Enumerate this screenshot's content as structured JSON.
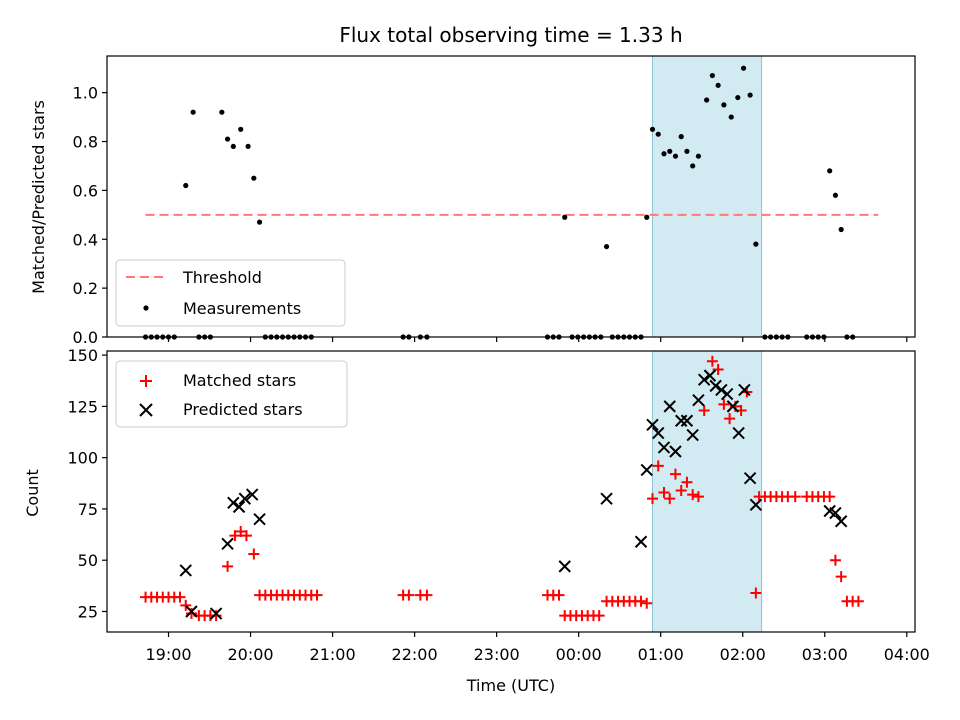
{
  "chart_data": {
    "type": "scatter",
    "title": "Flux total observing time = 1.33 h",
    "xlabel": "Time (UTC)",
    "x_unit": "hours since 00:00 UTC",
    "xlim": [
      -5.75,
      4.1
    ],
    "xticks": [
      {
        "v": -5,
        "label": "19:00"
      },
      {
        "v": -4,
        "label": "20:00"
      },
      {
        "v": -3,
        "label": "21:00"
      },
      {
        "v": -2,
        "label": "22:00"
      },
      {
        "v": -1,
        "label": "23:00"
      },
      {
        "v": 0,
        "label": "00:00"
      },
      {
        "v": 1,
        "label": "01:00"
      },
      {
        "v": 2,
        "label": "02:00"
      },
      {
        "v": 3,
        "label": "03:00"
      },
      {
        "v": 4,
        "label": "04:00"
      }
    ],
    "highlight_span": [
      0.9,
      2.23
    ],
    "top": {
      "ylabel": "Matched/Predicted stars",
      "ylim": [
        0,
        1.15
      ],
      "yticks": [
        "0.0",
        "0.2",
        "0.4",
        "0.6",
        "0.8",
        "1.0"
      ],
      "threshold": {
        "label": "Threshold",
        "value": 0.5,
        "x_range": [
          -5.28,
          3.65
        ]
      },
      "measurements_label": "Measurements",
      "measurements": [
        [
          -5.28,
          0
        ],
        [
          -5.21,
          0
        ],
        [
          -5.14,
          0
        ],
        [
          -5.07,
          0
        ],
        [
          -5.0,
          0
        ],
        [
          -4.93,
          0
        ],
        [
          -4.79,
          0.62
        ],
        [
          -4.7,
          0.92
        ],
        [
          -4.63,
          0
        ],
        [
          -4.56,
          0
        ],
        [
          -4.49,
          0
        ],
        [
          -4.35,
          0.92
        ],
        [
          -4.28,
          0.81
        ],
        [
          -4.21,
          0.78
        ],
        [
          -4.12,
          0.85
        ],
        [
          -4.03,
          0.78
        ],
        [
          -3.96,
          0.65
        ],
        [
          -3.89,
          0.47
        ],
        [
          -3.82,
          0
        ],
        [
          -3.75,
          0
        ],
        [
          -3.68,
          0
        ],
        [
          -3.61,
          0
        ],
        [
          -3.54,
          0
        ],
        [
          -3.47,
          0
        ],
        [
          -3.4,
          0
        ],
        [
          -3.33,
          0
        ],
        [
          -3.26,
          0
        ],
        [
          -2.14,
          0
        ],
        [
          -2.07,
          0
        ],
        [
          -1.93,
          0
        ],
        [
          -1.85,
          0
        ],
        [
          -0.38,
          0
        ],
        [
          -0.31,
          0
        ],
        [
          -0.24,
          0
        ],
        [
          -0.17,
          0.49
        ],
        [
          -0.08,
          0
        ],
        [
          -0.01,
          0
        ],
        [
          0.06,
          0
        ],
        [
          0.13,
          0
        ],
        [
          0.2,
          0
        ],
        [
          0.27,
          0
        ],
        [
          0.34,
          0.37
        ],
        [
          0.41,
          0
        ],
        [
          0.48,
          0
        ],
        [
          0.55,
          0
        ],
        [
          0.62,
          0
        ],
        [
          0.69,
          0
        ],
        [
          0.76,
          0
        ],
        [
          0.83,
          0.49
        ],
        [
          0.9,
          0.85
        ],
        [
          0.97,
          0.83
        ],
        [
          1.04,
          0.75
        ],
        [
          1.11,
          0.76
        ],
        [
          1.18,
          0.74
        ],
        [
          1.25,
          0.82
        ],
        [
          1.32,
          0.76
        ],
        [
          1.39,
          0.7
        ],
        [
          1.46,
          0.74
        ],
        [
          1.56,
          0.97
        ],
        [
          1.63,
          1.07
        ],
        [
          1.7,
          1.03
        ],
        [
          1.77,
          0.95
        ],
        [
          1.86,
          0.9
        ],
        [
          1.94,
          0.98
        ],
        [
          2.01,
          1.1
        ],
        [
          2.09,
          0.99
        ],
        [
          2.16,
          0.38
        ],
        [
          2.27,
          0
        ],
        [
          2.34,
          0
        ],
        [
          2.41,
          0
        ],
        [
          2.48,
          0
        ],
        [
          2.55,
          0
        ],
        [
          2.78,
          0
        ],
        [
          2.85,
          0
        ],
        [
          2.92,
          0
        ],
        [
          2.99,
          0
        ],
        [
          3.06,
          0.68
        ],
        [
          3.13,
          0.58
        ],
        [
          3.2,
          0.44
        ],
        [
          3.27,
          0
        ],
        [
          3.34,
          0
        ]
      ]
    },
    "bottom": {
      "ylabel": "Count",
      "ylim": [
        15,
        152
      ],
      "yticks": [
        "25",
        "50",
        "75",
        "100",
        "125",
        "150"
      ],
      "series": [
        {
          "name": "Matched stars",
          "marker": "plus",
          "color": "#ff0000",
          "points": [
            [
              -5.28,
              32
            ],
            [
              -5.21,
              32
            ],
            [
              -5.14,
              32
            ],
            [
              -5.07,
              32
            ],
            [
              -5.0,
              32
            ],
            [
              -4.93,
              32
            ],
            [
              -4.86,
              32
            ],
            [
              -4.79,
              28
            ],
            [
              -4.72,
              24
            ],
            [
              -4.63,
              23
            ],
            [
              -4.56,
              23
            ],
            [
              -4.49,
              23
            ],
            [
              -4.42,
              23
            ],
            [
              -4.28,
              47
            ],
            [
              -4.19,
              62
            ],
            [
              -4.12,
              64
            ],
            [
              -4.05,
              62
            ],
            [
              -3.96,
              53
            ],
            [
              -3.89,
              33
            ],
            [
              -3.82,
              33
            ],
            [
              -3.75,
              33
            ],
            [
              -3.68,
              33
            ],
            [
              -3.61,
              33
            ],
            [
              -3.54,
              33
            ],
            [
              -3.47,
              33
            ],
            [
              -3.4,
              33
            ],
            [
              -3.33,
              33
            ],
            [
              -3.26,
              33
            ],
            [
              -3.19,
              33
            ],
            [
              -2.14,
              33
            ],
            [
              -2.07,
              33
            ],
            [
              -1.93,
              33
            ],
            [
              -1.85,
              33
            ],
            [
              -0.38,
              33
            ],
            [
              -0.31,
              33
            ],
            [
              -0.24,
              33
            ],
            [
              -0.17,
              23
            ],
            [
              -0.1,
              23
            ],
            [
              -0.03,
              23
            ],
            [
              0.04,
              23
            ],
            [
              0.11,
              23
            ],
            [
              0.18,
              23
            ],
            [
              0.25,
              23
            ],
            [
              0.34,
              30
            ],
            [
              0.41,
              30
            ],
            [
              0.48,
              30
            ],
            [
              0.55,
              30
            ],
            [
              0.62,
              30
            ],
            [
              0.69,
              30
            ],
            [
              0.76,
              30
            ],
            [
              0.83,
              29
            ],
            [
              0.9,
              80
            ],
            [
              0.97,
              96
            ],
            [
              1.04,
              83
            ],
            [
              1.11,
              80
            ],
            [
              1.18,
              92
            ],
            [
              1.25,
              84
            ],
            [
              1.32,
              88
            ],
            [
              1.39,
              82
            ],
            [
              1.46,
              81
            ],
            [
              1.53,
              123
            ],
            [
              1.63,
              147
            ],
            [
              1.7,
              143
            ],
            [
              1.77,
              126
            ],
            [
              1.84,
              119
            ],
            [
              1.91,
              125
            ],
            [
              1.98,
              123
            ],
            [
              2.05,
              132
            ],
            [
              2.16,
              34
            ],
            [
              2.2,
              81
            ],
            [
              2.27,
              81
            ],
            [
              2.34,
              81
            ],
            [
              2.41,
              81
            ],
            [
              2.48,
              81
            ],
            [
              2.55,
              81
            ],
            [
              2.64,
              81
            ],
            [
              2.78,
              81
            ],
            [
              2.85,
              81
            ],
            [
              2.92,
              81
            ],
            [
              2.99,
              81
            ],
            [
              3.06,
              81
            ],
            [
              3.13,
              50
            ],
            [
              3.2,
              42
            ],
            [
              3.27,
              30
            ],
            [
              3.34,
              30
            ],
            [
              3.41,
              30
            ]
          ]
        },
        {
          "name": "Predicted stars",
          "marker": "x",
          "color": "#000000",
          "points": [
            [
              -4.79,
              45
            ],
            [
              -4.72,
              25
            ],
            [
              -4.42,
              24
            ],
            [
              -4.28,
              58
            ],
            [
              -4.21,
              78
            ],
            [
              -4.14,
              76
            ],
            [
              -4.07,
              80
            ],
            [
              -3.98,
              82
            ],
            [
              -3.89,
              70
            ],
            [
              -0.17,
              47
            ],
            [
              0.34,
              80
            ],
            [
              0.76,
              59
            ],
            [
              0.83,
              94
            ],
            [
              0.9,
              116
            ],
            [
              0.97,
              112
            ],
            [
              1.04,
              105
            ],
            [
              1.11,
              125
            ],
            [
              1.18,
              103
            ],
            [
              1.25,
              118
            ],
            [
              1.32,
              118
            ],
            [
              1.39,
              111
            ],
            [
              1.46,
              128
            ],
            [
              1.53,
              138
            ],
            [
              1.6,
              140
            ],
            [
              1.67,
              135
            ],
            [
              1.74,
              133
            ],
            [
              1.81,
              131
            ],
            [
              1.88,
              125
            ],
            [
              1.95,
              112
            ],
            [
              2.02,
              133
            ],
            [
              2.09,
              90
            ],
            [
              2.16,
              77
            ],
            [
              3.06,
              74
            ],
            [
              3.13,
              73
            ],
            [
              3.2,
              69
            ]
          ]
        }
      ]
    }
  }
}
